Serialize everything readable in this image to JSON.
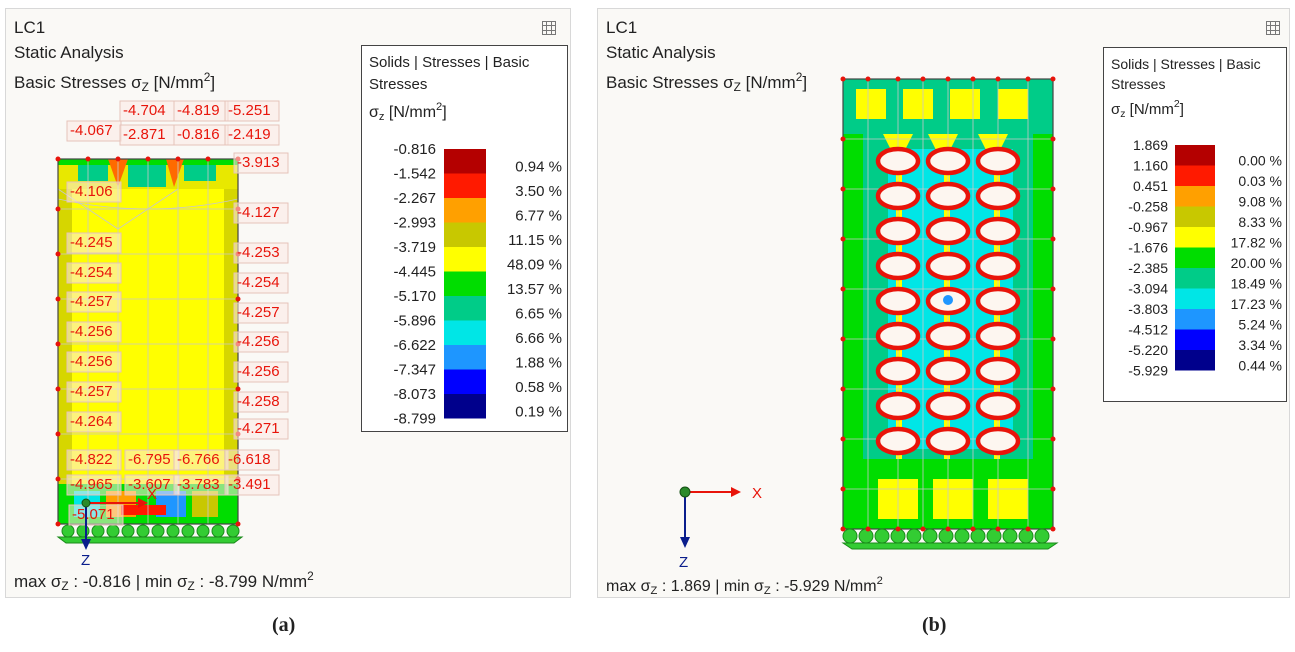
{
  "panel_a": {
    "case": "LC1",
    "analysis": "Static Analysis",
    "result_prefix": "Basic Stresses σ",
    "result_sub": "Z",
    "result_unit": " [N/mm",
    "result_unit_sup": "2",
    "result_close": "]",
    "legend": {
      "title_line1": "Solids | Stresses | Basic",
      "title_line2": "Stresses",
      "symbol": "σ",
      "symbol_sub": "z",
      "symbol_unit": " [N/mm",
      "symbol_sup": "2",
      "symbol_close": "]",
      "values": [
        "-0.816",
        "-1.542",
        "-2.267",
        "-2.993",
        "-3.719",
        "-4.445",
        "-5.170",
        "-5.896",
        "-6.622",
        "-7.347",
        "-8.073",
        "-8.799"
      ],
      "percents": [
        "0.94 %",
        "3.50 %",
        "6.77 %",
        "11.15 %",
        "48.09 %",
        "13.57 %",
        "6.65 %",
        "6.66 %",
        "1.88 %",
        "0.58 %",
        "0.19 %"
      ],
      "colors": [
        "#b40000",
        "#ff1a00",
        "#ffa000",
        "#c8c800",
        "#ffff00",
        "#00dd00",
        "#00cc88",
        "#00e6e6",
        "#1e96ff",
        "#0000ff",
        "#00008c"
      ]
    },
    "labels": [
      "-4.704",
      "-4.819",
      "-5.251",
      "-4.067",
      "-2.871",
      "-0.816",
      "-2.419",
      "-3.913",
      "-4.106",
      "-4.127",
      "-4.245",
      "-4.253",
      "-4.254",
      "-4.254",
      "-4.257",
      "-4.257",
      "-4.256",
      "-4.256",
      "-4.256",
      "-4.256",
      "-4.257",
      "-4.258",
      "-4.264",
      "-4.271",
      "-4.822",
      "-6.795",
      "-6.766",
      "-6.618",
      "-4.965",
      "-3.607",
      "-3.783",
      "-3.491",
      "-5.071"
    ],
    "axis_x": "X",
    "axis_z": "Z",
    "footer_max_label": "max σ",
    "footer_sub": "Z",
    "footer_max_value": " : -0.816 | min σ",
    "footer_min_value": " : -8.799 N/mm",
    "footer_sup": "2",
    "caption": "(a)"
  },
  "panel_b": {
    "case": "LC1",
    "analysis": "Static Analysis",
    "result_prefix": "Basic Stresses σ",
    "result_sub": "Z",
    "result_unit": " [N/mm",
    "result_unit_sup": "2",
    "result_close": "]",
    "legend": {
      "title_line1": "Solids | Stresses | Basic",
      "title_line2": "Stresses",
      "symbol": "σ",
      "symbol_sub": "z",
      "symbol_unit": " [N/mm",
      "symbol_sup": "2",
      "symbol_close": "]",
      "values": [
        "1.869",
        "1.160",
        "0.451",
        "-0.258",
        "-0.967",
        "-1.676",
        "-2.385",
        "-3.094",
        "-3.803",
        "-4.512",
        "-5.220",
        "-5.929"
      ],
      "percents": [
        "0.00 %",
        "0.03 %",
        "9.08 %",
        "8.33 %",
        "17.82 %",
        "20.00 %",
        "18.49 %",
        "17.23 %",
        "5.24 %",
        "3.34 %",
        "0.44 %"
      ],
      "colors": [
        "#b40000",
        "#ff1a00",
        "#ffa000",
        "#c8c800",
        "#ffff00",
        "#00dd00",
        "#00cc88",
        "#00e6e6",
        "#1e96ff",
        "#0000ff",
        "#00008c"
      ]
    },
    "axis_x": "X",
    "axis_z": "Z",
    "footer_max_label": "max σ",
    "footer_sub": "Z",
    "footer_max_value": " : 1.869 | min σ",
    "footer_min_value": " : -5.929 N/mm",
    "footer_sup": "2",
    "caption": "(b)"
  }
}
